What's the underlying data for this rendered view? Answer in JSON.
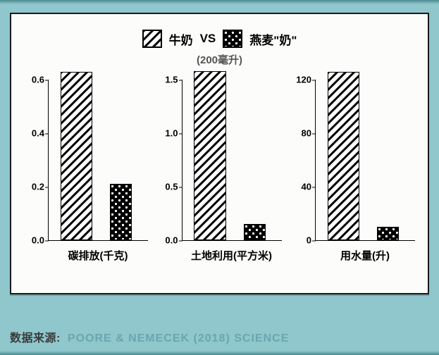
{
  "legend": {
    "series_a": {
      "label": "牛奶",
      "pattern": "diag"
    },
    "vs": "VS",
    "series_b": {
      "label": "燕麦\"奶\"",
      "pattern": "dots"
    }
  },
  "subtitle": "(200毫升)",
  "charts": [
    {
      "type": "bar",
      "xlabel": "碳排放(千克)",
      "ymax": 0.6,
      "yticks": [
        0.0,
        0.2,
        0.4,
        0.6
      ],
      "ytick_labels": [
        "0.0",
        "0.2",
        "0.4",
        "0.6"
      ],
      "bars": [
        {
          "series": "a",
          "value": 0.63,
          "pattern": "diag",
          "left_pct": 12,
          "width_pct": 32
        },
        {
          "series": "b",
          "value": 0.21,
          "pattern": "dots",
          "left_pct": 62,
          "width_pct": 22
        }
      ]
    },
    {
      "type": "bar",
      "xlabel": "土地利用(平方米)",
      "ymax": 1.5,
      "yticks": [
        0.0,
        0.5,
        1.0,
        1.5
      ],
      "ytick_labels": [
        "0.0",
        "0.5",
        "1.0",
        "1.5"
      ],
      "bars": [
        {
          "series": "a",
          "value": 1.58,
          "pattern": "diag",
          "left_pct": 12,
          "width_pct": 32
        },
        {
          "series": "b",
          "value": 0.15,
          "pattern": "dots",
          "left_pct": 62,
          "width_pct": 22
        }
      ]
    },
    {
      "type": "bar",
      "xlabel": "用水量(升)",
      "ymax": 120,
      "yticks": [
        0,
        40,
        80,
        120
      ],
      "ytick_labels": [
        "0",
        "40",
        "80",
        "120"
      ],
      "bars": [
        {
          "series": "a",
          "value": 126,
          "pattern": "diag",
          "left_pct": 12,
          "width_pct": 32
        },
        {
          "series": "b",
          "value": 10,
          "pattern": "dots",
          "left_pct": 62,
          "width_pct": 22
        }
      ]
    }
  ],
  "style": {
    "frame_bg": "#8fc7cc",
    "card_bg": "#fcfcfa",
    "card_border": "#1a1a1a",
    "axis_color": "#000000",
    "text_color": "#000000",
    "subtitle_color": "#555555",
    "label_fontsize": 15,
    "tick_fontsize": 13,
    "legend_fontsize": 17,
    "bar_border_width": 1.5,
    "source_label_color": "#3a3a3a",
    "source_value_color": "#6aa6b0"
  },
  "source": {
    "label": "数据来源:",
    "value": "Poore & Nemecek (2018) Science"
  }
}
